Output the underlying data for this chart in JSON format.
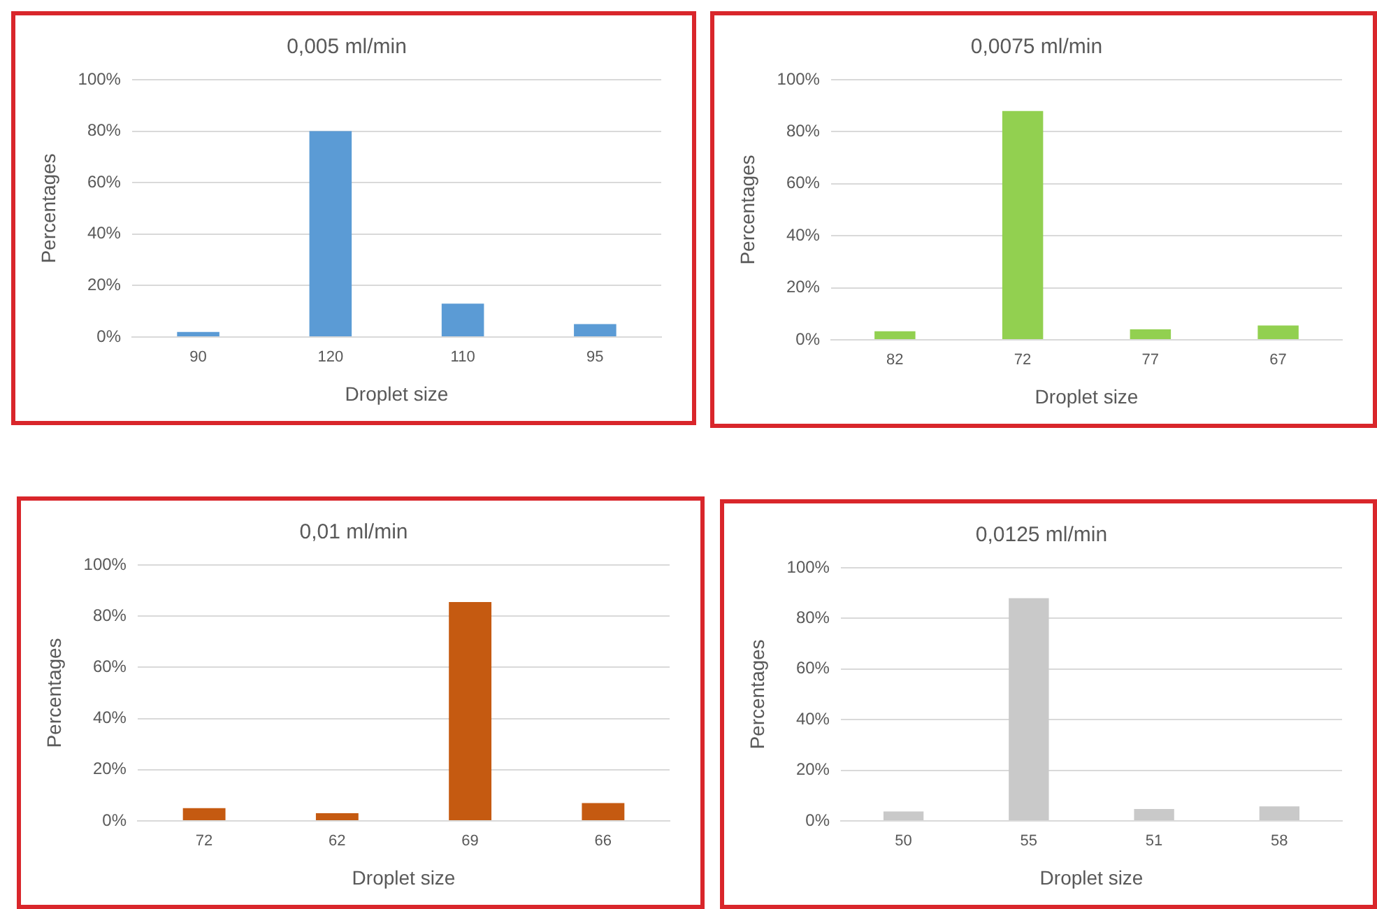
{
  "chart_data": [
    {
      "type": "bar",
      "title": "0,005 ml/min",
      "xlabel": "Droplet size",
      "ylabel": "Percentages",
      "categories": [
        "90",
        "120",
        "110",
        "95"
      ],
      "values": [
        2,
        80,
        13,
        5
      ],
      "color": "#5b9bd5",
      "ylim": [
        0,
        100
      ],
      "yticks": [
        {
          "value": 0,
          "label": "0%"
        },
        {
          "value": 20,
          "label": "20%"
        },
        {
          "value": 40,
          "label": "40%"
        },
        {
          "value": 60,
          "label": "60%"
        },
        {
          "value": 80,
          "label": "80%"
        },
        {
          "value": 100,
          "label": "100%"
        }
      ],
      "grid": "y"
    },
    {
      "type": "bar",
      "title": "0,0075 ml/min",
      "xlabel": "Droplet size",
      "ylabel": "Percentages",
      "categories": [
        "82",
        "72",
        "77",
        "67"
      ],
      "values": [
        3.3,
        88,
        4,
        5.5
      ],
      "color": "#92d050",
      "ylim": [
        0,
        100
      ],
      "yticks": [
        {
          "value": 0,
          "label": "0%"
        },
        {
          "value": 20,
          "label": "20%"
        },
        {
          "value": 40,
          "label": "40%"
        },
        {
          "value": 60,
          "label": "60%"
        },
        {
          "value": 80,
          "label": "80%"
        },
        {
          "value": 100,
          "label": "100%"
        }
      ],
      "grid": "y"
    },
    {
      "type": "bar",
      "title": "0,01 ml/min",
      "xlabel": "Droplet size",
      "ylabel": "Percentages",
      "categories": [
        "72",
        "62",
        "69",
        "66"
      ],
      "values": [
        5,
        3,
        85.5,
        7
      ],
      "color": "#c55a11",
      "ylim": [
        0,
        100
      ],
      "yticks": [
        {
          "value": 0,
          "label": "0%"
        },
        {
          "value": 20,
          "label": "20%"
        },
        {
          "value": 40,
          "label": "40%"
        },
        {
          "value": 60,
          "label": "60%"
        },
        {
          "value": 80,
          "label": "80%"
        },
        {
          "value": 100,
          "label": "100%"
        }
      ],
      "grid": "y"
    },
    {
      "type": "bar",
      "title": "0,0125 ml/min",
      "xlabel": "Droplet size",
      "ylabel": "Percentages",
      "categories": [
        "50",
        "55",
        "51",
        "58"
      ],
      "values": [
        3.7,
        88,
        4.7,
        5.7
      ],
      "color": "#c9c9c9",
      "ylim": [
        0,
        100
      ],
      "yticks": [
        {
          "value": 0,
          "label": "0%"
        },
        {
          "value": 20,
          "label": "20%"
        },
        {
          "value": 40,
          "label": "40%"
        },
        {
          "value": 60,
          "label": "60%"
        },
        {
          "value": 80,
          "label": "80%"
        },
        {
          "value": 100,
          "label": "100%"
        }
      ],
      "grid": "y"
    }
  ]
}
